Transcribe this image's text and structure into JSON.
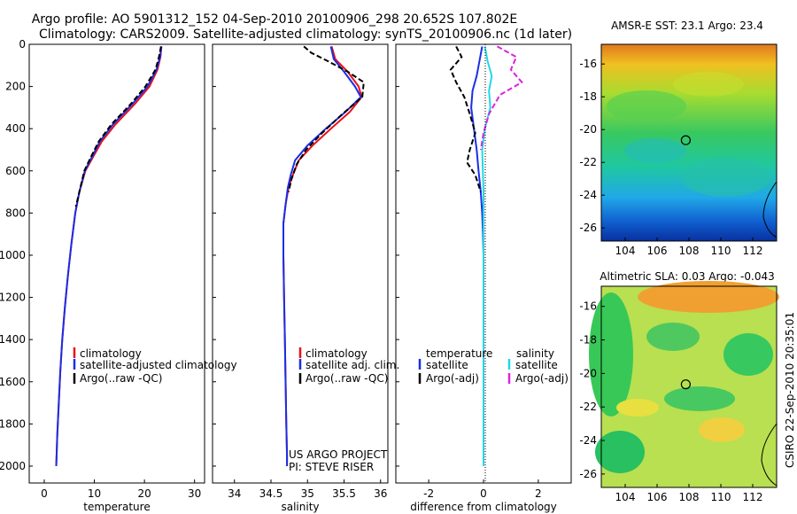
{
  "header": {
    "line1": "Argo profile: AO 5901312_152 04-Sep-2010 20100906_298 20.652S 107.802E",
    "line2": "Climatology: CARS2009. Satellite-adjusted climatology: synTS_20100906.nc (1d later)"
  },
  "sidebar_stamp": "CSIRO 22-Sep-2010 20:35:01",
  "colors": {
    "clim": "#e8101a",
    "sat": "#1a2ee8",
    "argo": "#000000",
    "sat_s": "#22d8e8",
    "argo_s": "#e020e0"
  },
  "chart_data": [
    {
      "type": "line",
      "name": "temperature-profile",
      "xlabel": "temperature",
      "ylabel": "",
      "xlim": [
        -3,
        32
      ],
      "ylim": [
        0,
        2080
      ],
      "y_reversed": true,
      "xticks": [
        "0",
        "10",
        "20",
        "30"
      ],
      "xtick_values": [
        0,
        10,
        20,
        30
      ],
      "yticks": [
        "0",
        "200",
        "400",
        "600",
        "800",
        "1000",
        "1200",
        "1400",
        "1600",
        "1800",
        "2000"
      ],
      "ytick_values": [
        0,
        200,
        400,
        600,
        800,
        1000,
        1200,
        1400,
        1600,
        1800,
        2000
      ],
      "legend": [
        "climatology",
        "satellite-adjusted climatology",
        "Argo(..raw -QC)"
      ],
      "series": [
        {
          "name": "climatology",
          "color_key": "clim",
          "x": [
            23.4,
            23.2,
            22.6,
            21.0,
            18.2,
            14.2,
            11.5,
            9.6,
            8.2,
            7.0,
            6.2,
            5.4,
            4.7,
            4.1,
            3.6,
            3.2,
            2.9,
            2.6,
            2.4
          ],
          "y": [
            10,
            60,
            120,
            200,
            280,
            380,
            460,
            540,
            600,
            700,
            800,
            950,
            1100,
            1250,
            1400,
            1550,
            1700,
            1850,
            2000
          ]
        },
        {
          "name": "satellite",
          "color_key": "sat",
          "x": [
            23.4,
            23.1,
            22.4,
            20.6,
            17.7,
            13.7,
            11.1,
            9.4,
            8.1,
            7.0,
            6.2,
            5.4,
            4.7,
            4.1,
            3.6,
            3.2,
            2.9,
            2.6,
            2.4
          ],
          "y": [
            10,
            60,
            120,
            200,
            280,
            380,
            460,
            540,
            600,
            700,
            800,
            950,
            1100,
            1250,
            1400,
            1550,
            1700,
            1850,
            2000
          ]
        },
        {
          "name": "argo",
          "color_key": "argo",
          "dashed": true,
          "x": [
            23.3,
            22.9,
            22.2,
            20.2,
            17.4,
            13.4,
            10.9,
            9.2,
            8.0,
            7.0,
            6.3
          ],
          "y": [
            10,
            60,
            120,
            200,
            280,
            380,
            460,
            540,
            600,
            700,
            770
          ]
        }
      ]
    },
    {
      "type": "line",
      "name": "salinity-profile",
      "xlabel": "salinity",
      "xlim": [
        33.7,
        36.1
      ],
      "ylim": [
        0,
        2080
      ],
      "y_reversed": true,
      "xticks": [
        "34",
        "34.5",
        "35",
        "35.5",
        "36"
      ],
      "xtick_values": [
        34,
        34.5,
        35,
        35.5,
        36
      ],
      "legend": [
        "climatology",
        "satellite adj. clim.",
        "Argo(..raw -QC)"
      ],
      "annotations": [
        "US ARGO PROJECT",
        "PI: STEVE RISER"
      ],
      "series": [
        {
          "name": "climatology",
          "color_key": "clim",
          "x": [
            35.33,
            35.38,
            35.55,
            35.7,
            35.74,
            35.58,
            35.32,
            35.07,
            34.88,
            34.8,
            34.74,
            34.7,
            34.67,
            34.67,
            34.68,
            34.69,
            34.7,
            34.71,
            34.72,
            34.72
          ],
          "y": [
            10,
            70,
            130,
            200,
            250,
            320,
            400,
            480,
            550,
            620,
            680,
            760,
            850,
            1000,
            1200,
            1400,
            1600,
            1800,
            1950,
            2000
          ]
        },
        {
          "name": "satellite",
          "color_key": "sat",
          "x": [
            35.32,
            35.36,
            35.5,
            35.65,
            35.73,
            35.52,
            35.25,
            35.0,
            34.83,
            34.77,
            34.73,
            34.7,
            34.67,
            34.67,
            34.68,
            34.69,
            34.7,
            34.71,
            34.72,
            34.72
          ],
          "y": [
            10,
            70,
            130,
            200,
            250,
            320,
            400,
            480,
            550,
            620,
            680,
            760,
            850,
            1000,
            1200,
            1400,
            1600,
            1800,
            1950,
            2000
          ]
        },
        {
          "name": "argo",
          "color_key": "argo",
          "dashed": true,
          "x": [
            34.95,
            35.05,
            35.28,
            35.55,
            35.77,
            35.75,
            35.48,
            35.2,
            34.98,
            34.85,
            34.78,
            34.74
          ],
          "y": [
            10,
            40,
            80,
            130,
            180,
            250,
            330,
            420,
            500,
            570,
            640,
            700
          ]
        }
      ]
    },
    {
      "type": "line",
      "name": "difference-profile",
      "xlabel": "difference from climatology",
      "xlim": [
        -3.2,
        3.2
      ],
      "ylim": [
        0,
        2080
      ],
      "y_reversed": true,
      "xticks": [
        "-2",
        "0",
        "2"
      ],
      "xtick_values": [
        -2,
        0,
        2
      ],
      "legend_left_title": "temperature",
      "legend_right_title": "salinity",
      "legend": [
        "satellite",
        "Argo(-adj)",
        "satellite",
        "Argo(-adj)"
      ],
      "series": [
        {
          "name": "temp-satellite",
          "color_key": "sat",
          "x": [
            -0.05,
            -0.15,
            -0.25,
            -0.4,
            -0.45,
            -0.35,
            -0.25,
            -0.18,
            -0.1,
            -0.05,
            -0.02,
            0,
            0,
            0,
            0,
            0
          ],
          "y": [
            10,
            80,
            150,
            220,
            300,
            400,
            500,
            600,
            700,
            800,
            900,
            1000,
            1300,
            1600,
            1900,
            2000
          ]
        },
        {
          "name": "temp-argo",
          "color_key": "argo",
          "dashed": true,
          "x": [
            -1.0,
            -0.8,
            -1.2,
            -1.0,
            -0.7,
            -0.5,
            -0.3,
            -0.5,
            -0.6,
            -0.3,
            -0.1
          ],
          "y": [
            10,
            60,
            120,
            180,
            250,
            330,
            420,
            500,
            560,
            620,
            700
          ]
        },
        {
          "name": "sal-satellite",
          "color_key": "sat_s",
          "x": [
            0.05,
            0.15,
            0.3,
            0.2,
            0.25,
            0.05,
            -0.05,
            0,
            0,
            0
          ],
          "y": [
            10,
            80,
            150,
            220,
            300,
            400,
            500,
            700,
            1000,
            2000
          ]
        },
        {
          "name": "sal-argo",
          "color_key": "argo_s",
          "dashed": true,
          "x": [
            0.5,
            1.2,
            1.0,
            1.4,
            0.6,
            0.2,
            0,
            -0.1
          ],
          "y": [
            10,
            60,
            120,
            180,
            240,
            330,
            420,
            500
          ]
        }
      ]
    },
    {
      "type": "heatmap",
      "name": "sst-map",
      "title": "AMSR-E SST: 23.1  Argo: 23.4",
      "xticks": [
        "104",
        "106",
        "108",
        "110",
        "112"
      ],
      "yticks": [
        "-16",
        "-18",
        "-20",
        "-22",
        "-24",
        "-26"
      ],
      "xtick_values": [
        104,
        106,
        108,
        110,
        112
      ],
      "ytick_values": [
        -16,
        -18,
        -20,
        -22,
        -24,
        -26
      ],
      "xlim": [
        102.5,
        113.5
      ],
      "ylim": [
        -26.8,
        -14.8
      ],
      "marker": {
        "lon": 107.8,
        "lat": -20.65
      }
    },
    {
      "type": "heatmap",
      "name": "sla-map",
      "title": "Altimetric SLA: 0.03  Argo: -0.043",
      "xticks": [
        "104",
        "106",
        "108",
        "110",
        "112"
      ],
      "yticks": [
        "-16",
        "-18",
        "-20",
        "-22",
        "-24",
        "-26"
      ],
      "xtick_values": [
        104,
        106,
        108,
        110,
        112
      ],
      "ytick_values": [
        -16,
        -18,
        -20,
        -22,
        -24,
        -26
      ],
      "xlim": [
        102.5,
        113.5
      ],
      "ylim": [
        -26.8,
        -14.8
      ],
      "marker": {
        "lon": 107.8,
        "lat": -20.65
      }
    }
  ]
}
